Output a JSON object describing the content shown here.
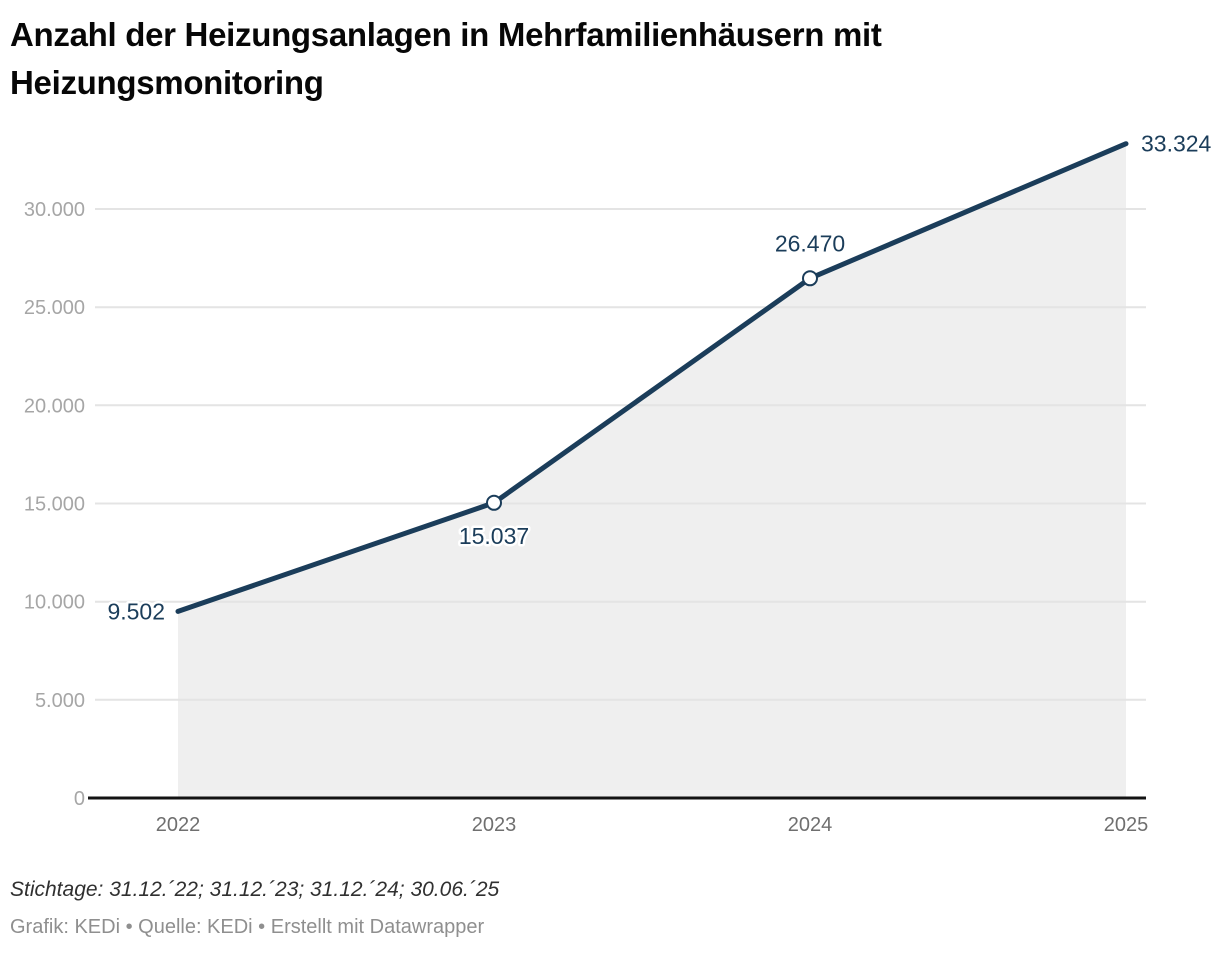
{
  "header": {
    "title": "Anzahl der Heizungsanlagen in Mehrfamilienhäusern mit\nHeizungsmonitoring"
  },
  "chart_data": {
    "type": "area",
    "title": "Anzahl der Heizungsanlagen in Mehrfamilienhäusern mit Heizungsmonitoring",
    "x": [
      "2022",
      "2023",
      "2024",
      "2025"
    ],
    "values": [
      9502,
      15037,
      26470,
      33324
    ],
    "data_labels": [
      "9.502",
      "15.037",
      "26.470",
      "33.324"
    ],
    "marker_indices": [
      1,
      2
    ],
    "y_ticks": [
      {
        "value": 0,
        "label": "0"
      },
      {
        "value": 5000,
        "label": "5.000"
      },
      {
        "value": 10000,
        "label": "10.000"
      },
      {
        "value": 15000,
        "label": "15.000"
      },
      {
        "value": 20000,
        "label": "20.000"
      },
      {
        "value": 25000,
        "label": "25.000"
      },
      {
        "value": 30000,
        "label": "30.000"
      }
    ],
    "ylim": [
      0,
      33324
    ],
    "grid": true,
    "legend": "none",
    "colors": {
      "line": "#1b3d5a",
      "area": "#efefef",
      "grid": "#e4e4e4",
      "axis": "#131313",
      "data_label": "#1b3d5a",
      "tick_label_y": "#a6a6a6",
      "tick_label_x": "#6f6f6f",
      "marker_fill": "#ffffff"
    }
  },
  "footer": {
    "notes": "Stichtage: 31.12.´22; 31.12.´23; 31.12.´24; 30.06.´25",
    "byline": "Grafik: KEDi • Quelle: KEDi • Erstellt mit Datawrapper"
  }
}
